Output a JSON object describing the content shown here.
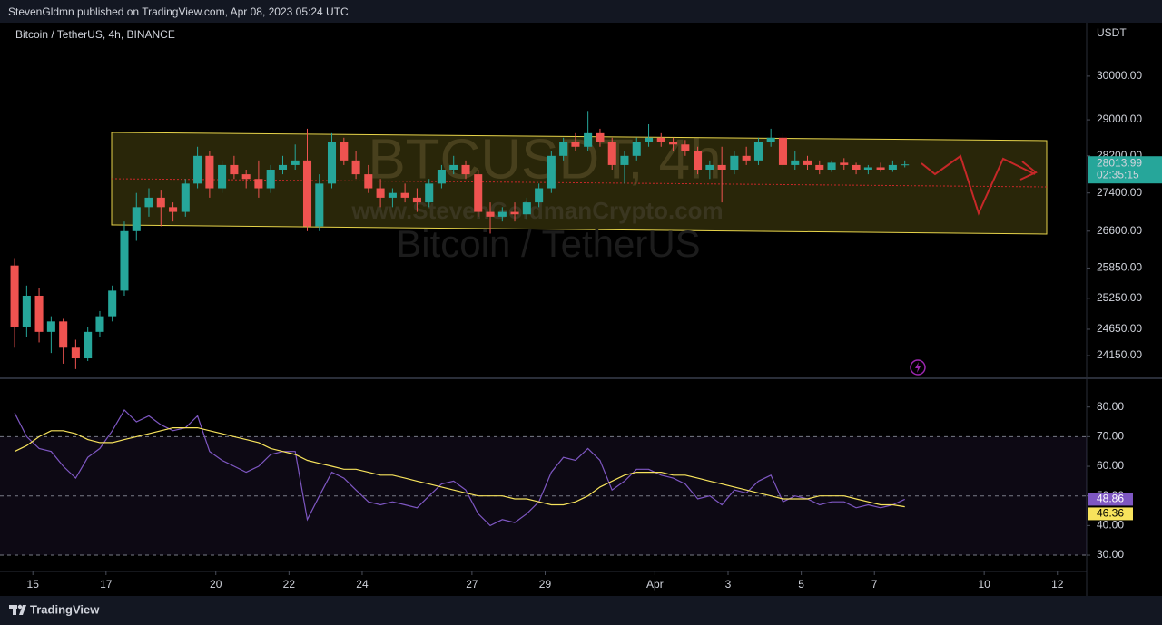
{
  "header": {
    "publisher": "StevenGldmn published on TradingView.com, Apr 08, 2023 05:24 UTC",
    "brand": "TradingView"
  },
  "chart_data": [
    {
      "type": "candlestick",
      "title": "Bitcoin / TetherUS, 4h, BINANCE",
      "y_axis_label": "USDT",
      "watermark": "BTCUSDT, 4h",
      "watermark_site": "www.StevenGoldmanCrypto.com",
      "watermark_name": "Bitcoin / TetherUS",
      "log_scale": true,
      "up_color": "#26a69a",
      "down_color": "#ef5350",
      "x": [
        14.5,
        14.83,
        15.17,
        15.5,
        15.83,
        16.17,
        16.5,
        16.83,
        17.17,
        17.5,
        17.83,
        18.17,
        18.5,
        18.83,
        19.17,
        19.5,
        19.83,
        20.17,
        20.5,
        20.83,
        21.17,
        21.5,
        21.83,
        22.17,
        22.5,
        22.83,
        23.17,
        23.5,
        23.83,
        24.17,
        24.5,
        24.83,
        25.17,
        25.5,
        25.83,
        26.17,
        26.5,
        26.83,
        27.17,
        27.5,
        27.83,
        28.17,
        28.5,
        28.83,
        29.17,
        29.5,
        29.83,
        30.17,
        30.5,
        30.83,
        31.17,
        31.5,
        31.83,
        32.17,
        32.5,
        32.83,
        33.17,
        33.5,
        33.83,
        34.17,
        34.5,
        34.83,
        35.17,
        35.5,
        35.83,
        36.17,
        36.5,
        36.83,
        37.17,
        37.5,
        37.83,
        38.17,
        38.5,
        38.83
      ],
      "open": [
        25900,
        24700,
        25300,
        24600,
        24800,
        24300,
        24100,
        24600,
        24900,
        25400,
        26600,
        27100,
        27300,
        27100,
        27000,
        27600,
        28200,
        27500,
        28000,
        27800,
        27700,
        27500,
        27900,
        28000,
        28100,
        26700,
        27600,
        28500,
        28100,
        27800,
        27500,
        27300,
        27400,
        27300,
        27200,
        27600,
        27900,
        28000,
        27800,
        27000,
        26900,
        27000,
        26950,
        27200,
        27500,
        28200,
        28500,
        28400,
        28700,
        28500,
        28000,
        28200,
        28500,
        28600,
        28500,
        28450,
        28300,
        27900,
        28000,
        27900,
        28200,
        28100,
        28500,
        28600,
        28000,
        28100,
        28000,
        27900,
        28050,
        28000,
        27900,
        27950,
        27900,
        28000
      ],
      "high": [
        26050,
        25500,
        25450,
        24900,
        24850,
        24450,
        24700,
        25000,
        25500,
        26800,
        27400,
        27500,
        27450,
        27200,
        27700,
        28400,
        28300,
        28100,
        28200,
        27900,
        28100,
        28000,
        28200,
        28450,
        28800,
        27800,
        28700,
        28600,
        28300,
        28000,
        27700,
        27500,
        27600,
        27500,
        27700,
        28000,
        28200,
        28100,
        27900,
        27200,
        27100,
        27200,
        27300,
        27600,
        28300,
        28600,
        28700,
        29200,
        28800,
        28600,
        28300,
        28600,
        28900,
        28700,
        28600,
        28550,
        28400,
        28100,
        28400,
        28300,
        28400,
        28600,
        28800,
        28700,
        28300,
        28200,
        28100,
        28100,
        28150,
        28050,
        28000,
        28050,
        28100,
        28100
      ],
      "low": [
        24300,
        24500,
        24400,
        24200,
        24000,
        23900,
        24050,
        24500,
        24800,
        25300,
        26400,
        26900,
        26700,
        26800,
        26900,
        27500,
        27300,
        27400,
        27700,
        27500,
        27300,
        27400,
        27800,
        27900,
        26600,
        26600,
        27500,
        28000,
        27700,
        27400,
        27100,
        27100,
        27200,
        27000,
        27100,
        27500,
        27800,
        27700,
        26900,
        26550,
        26800,
        26800,
        26850,
        27100,
        27400,
        28100,
        28300,
        28300,
        28400,
        27900,
        27600,
        28100,
        28400,
        28400,
        28300,
        28200,
        27800,
        27700,
        27200,
        27800,
        28000,
        28000,
        28400,
        27900,
        27900,
        27900,
        27800,
        27850,
        27900,
        27800,
        27800,
        27850,
        27850,
        27950
      ],
      "close": [
        24700,
        25300,
        24600,
        24800,
        24300,
        24100,
        24600,
        24900,
        25400,
        26600,
        27100,
        27300,
        27100,
        27000,
        27600,
        28200,
        27500,
        28000,
        27800,
        27700,
        27500,
        27900,
        28000,
        28100,
        26700,
        27600,
        28500,
        28100,
        27800,
        27500,
        27300,
        27400,
        27300,
        27200,
        27600,
        27900,
        28000,
        27800,
        27000,
        26900,
        27000,
        26950,
        27200,
        27500,
        28200,
        28500,
        28400,
        28700,
        28500,
        28000,
        28200,
        28500,
        28600,
        28500,
        28450,
        28300,
        27900,
        28000,
        27900,
        28200,
        28100,
        28500,
        28600,
        28000,
        28100,
        28000,
        27900,
        28050,
        28000,
        27900,
        27950,
        27900,
        28000,
        28013.99
      ],
      "last_price": 28013.99,
      "countdown": "02:35:15",
      "ylim": [
        23730,
        31270
      ],
      "yticks": [
        {
          "value": 24150,
          "label": "24150.00"
        },
        {
          "value": 24650,
          "label": "24650.00"
        },
        {
          "value": 25250,
          "label": "25250.00"
        },
        {
          "value": 25850,
          "label": "25850.00"
        },
        {
          "value": 26600,
          "label": "26600.00"
        },
        {
          "value": 27400,
          "label": "27400.00"
        },
        {
          "value": 28200,
          "label": "28200.00"
        },
        {
          "value": 29000,
          "label": "29000.00"
        },
        {
          "value": 30000,
          "label": "30000.00"
        }
      ],
      "xlim": [
        14.3,
        43.8
      ],
      "xticks": [
        15,
        17,
        20,
        22,
        24,
        27,
        29,
        {
          "value": 32,
          "label": "Apr"
        },
        {
          "value": 34,
          "label": "3"
        },
        {
          "value": 36,
          "label": "5"
        },
        {
          "value": 38,
          "label": "7"
        },
        {
          "value": 41,
          "label": "10"
        },
        {
          "value": 43,
          "label": "12"
        }
      ]
    },
    {
      "type": "line",
      "x": [
        14.5,
        14.83,
        15.17,
        15.5,
        15.83,
        16.17,
        16.5,
        16.83,
        17.17,
        17.5,
        17.83,
        18.17,
        18.5,
        18.83,
        19.17,
        19.5,
        19.83,
        20.17,
        20.5,
        20.83,
        21.17,
        21.5,
        21.83,
        22.17,
        22.5,
        22.83,
        23.17,
        23.5,
        23.83,
        24.17,
        24.5,
        24.83,
        25.17,
        25.5,
        25.83,
        26.17,
        26.5,
        26.83,
        27.17,
        27.5,
        27.83,
        28.17,
        28.5,
        28.83,
        29.17,
        29.5,
        29.83,
        30.17,
        30.5,
        30.83,
        31.17,
        31.5,
        31.83,
        32.17,
        32.5,
        32.83,
        33.17,
        33.5,
        33.83,
        34.17,
        34.5,
        34.83,
        35.17,
        35.5,
        35.83,
        36.17,
        36.5,
        36.83,
        37.17,
        37.5,
        37.83,
        38.17,
        38.5,
        38.83
      ],
      "series": [
        {
          "color": "#7e57c2",
          "values": [
            78,
            70,
            66,
            65,
            60,
            56,
            63,
            66,
            72,
            79,
            75,
            77,
            74,
            72,
            73,
            77,
            65,
            62,
            60,
            58,
            60,
            64,
            65,
            65,
            42,
            50,
            58,
            56,
            52,
            48,
            47,
            48,
            47,
            46,
            50,
            54,
            55,
            52,
            44,
            40,
            42,
            41,
            44,
            48,
            58,
            63,
            62,
            66,
            62,
            52,
            55,
            59,
            59,
            57,
            56,
            54,
            49,
            50,
            47,
            52,
            51,
            55,
            57,
            48,
            50,
            49,
            47,
            48,
            48,
            46,
            47,
            46,
            47,
            48.86
          ]
        },
        {
          "color": "#f7e35c",
          "values": [
            65,
            67,
            70,
            72,
            72,
            71,
            69,
            68,
            68,
            69,
            70,
            71,
            72,
            73,
            73,
            73,
            72,
            71,
            70,
            69,
            68,
            66,
            65,
            64,
            62,
            61,
            60,
            59,
            59,
            58,
            57,
            57,
            56,
            55,
            54,
            53,
            52,
            51,
            50,
            50,
            50,
            49,
            49,
            48,
            47,
            47,
            48,
            50,
            53,
            55,
            57,
            58,
            58,
            58,
            57,
            57,
            56,
            55,
            54,
            53,
            52,
            51,
            50,
            49,
            49,
            49,
            50,
            50,
            50,
            49,
            48,
            47,
            47,
            46.36
          ]
        }
      ],
      "levels": [
        70,
        50,
        30
      ],
      "ylim": [
        24.5,
        89.4
      ],
      "yticks": [
        {
          "value": 30,
          "label": "30.00"
        },
        {
          "value": 40,
          "label": "40.00"
        },
        {
          "value": 50,
          "label": "50.00"
        },
        {
          "value": 60,
          "label": "60.00"
        },
        {
          "value": 70,
          "label": "70.00"
        },
        {
          "value": 80,
          "label": "80.00"
        }
      ]
    }
  ]
}
